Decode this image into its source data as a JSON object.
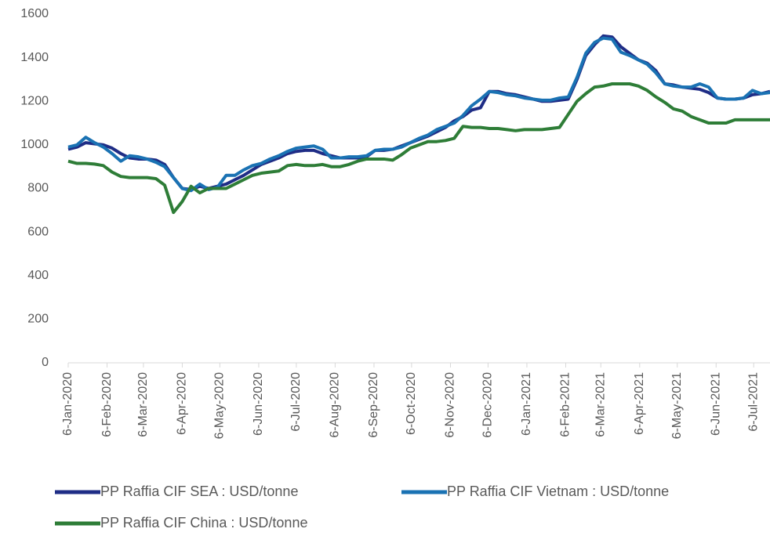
{
  "chart_data": {
    "type": "line",
    "x": [
      "2020-01-06",
      "2020-01-13",
      "2020-01-20",
      "2020-01-27",
      "2020-02-03",
      "2020-02-10",
      "2020-02-17",
      "2020-02-24",
      "2020-03-02",
      "2020-03-09",
      "2020-03-16",
      "2020-03-23",
      "2020-03-30",
      "2020-04-06",
      "2020-04-13",
      "2020-04-20",
      "2020-04-27",
      "2020-05-04",
      "2020-05-11",
      "2020-05-18",
      "2020-05-25",
      "2020-06-01",
      "2020-06-08",
      "2020-06-15",
      "2020-06-22",
      "2020-06-29",
      "2020-07-06",
      "2020-07-13",
      "2020-07-20",
      "2020-07-27",
      "2020-08-03",
      "2020-08-10",
      "2020-08-17",
      "2020-08-24",
      "2020-08-31",
      "2020-09-07",
      "2020-09-14",
      "2020-09-21",
      "2020-09-28",
      "2020-10-05",
      "2020-10-12",
      "2020-10-19",
      "2020-10-26",
      "2020-11-02",
      "2020-11-09",
      "2020-11-16",
      "2020-11-23",
      "2020-11-30",
      "2020-12-07",
      "2020-12-14",
      "2020-12-21",
      "2020-12-28",
      "2021-01-04",
      "2021-01-11",
      "2021-01-18",
      "2021-01-25",
      "2021-02-01",
      "2021-02-08",
      "2021-02-15",
      "2021-02-22",
      "2021-03-01",
      "2021-03-08",
      "2021-03-15",
      "2021-03-22",
      "2021-03-29",
      "2021-04-05",
      "2021-04-12",
      "2021-04-19",
      "2021-04-26",
      "2021-05-03",
      "2021-05-10",
      "2021-05-17",
      "2021-05-24",
      "2021-05-31",
      "2021-06-07",
      "2021-06-14",
      "2021-06-21",
      "2021-06-28",
      "2021-07-05",
      "2021-07-12",
      "2021-07-19"
    ],
    "series": [
      {
        "name": "PP Raffia CIF SEA : USD/tonne",
        "color": "#1f2d86",
        "values": [
          980,
          990,
          1010,
          1005,
          1000,
          985,
          960,
          940,
          935,
          935,
          930,
          910,
          850,
          800,
          795,
          810,
          800,
          810,
          820,
          840,
          860,
          885,
          910,
          925,
          940,
          960,
          970,
          975,
          975,
          960,
          950,
          940,
          940,
          940,
          945,
          975,
          975,
          980,
          995,
          1010,
          1025,
          1040,
          1060,
          1080,
          1110,
          1130,
          1160,
          1170,
          1245,
          1245,
          1235,
          1230,
          1220,
          1210,
          1200,
          1200,
          1205,
          1210,
          1300,
          1410,
          1460,
          1500,
          1495,
          1450,
          1420,
          1390,
          1375,
          1340,
          1280,
          1275,
          1265,
          1260,
          1255,
          1240,
          1215,
          1210,
          1210,
          1215,
          1230,
          1235,
          1245
        ]
      },
      {
        "name": "PP Raffia CIF Vietnam : USD/tonne",
        "color": "#1a72b3",
        "values": [
          990,
          1000,
          1035,
          1010,
          990,
          960,
          925,
          950,
          945,
          935,
          920,
          900,
          850,
          800,
          790,
          820,
          795,
          805,
          860,
          860,
          885,
          905,
          915,
          935,
          950,
          970,
          985,
          990,
          995,
          980,
          940,
          940,
          945,
          945,
          950,
          975,
          980,
          980,
          990,
          1010,
          1030,
          1045,
          1070,
          1085,
          1100,
          1135,
          1180,
          1210,
          1245,
          1240,
          1230,
          1225,
          1215,
          1210,
          1205,
          1205,
          1215,
          1220,
          1310,
          1420,
          1470,
          1490,
          1485,
          1425,
          1410,
          1390,
          1370,
          1330,
          1280,
          1270,
          1265,
          1265,
          1280,
          1265,
          1215,
          1210,
          1210,
          1215,
          1250,
          1235,
          1240
        ]
      },
      {
        "name": "PP Raffia CIF China : USD/tonne",
        "color": "#2e7d37",
        "values": [
          925,
          915,
          915,
          912,
          905,
          875,
          855,
          850,
          850,
          850,
          845,
          815,
          690,
          740,
          810,
          780,
          800,
          800,
          800,
          820,
          840,
          860,
          870,
          875,
          880,
          905,
          910,
          905,
          905,
          910,
          900,
          900,
          910,
          925,
          935,
          935,
          935,
          930,
          955,
          985,
          1000,
          1015,
          1015,
          1020,
          1030,
          1085,
          1080,
          1080,
          1075,
          1075,
          1070,
          1065,
          1070,
          1070,
          1070,
          1075,
          1080,
          1140,
          1200,
          1235,
          1265,
          1270,
          1280,
          1280,
          1280,
          1270,
          1250,
          1220,
          1195,
          1165,
          1155,
          1130,
          1115,
          1100,
          1100,
          1100,
          1115,
          1115,
          1115,
          1115,
          1115
        ]
      }
    ],
    "xlim": [
      "2020-01-06",
      "2021-07-19"
    ],
    "xticks": [
      {
        "value": "2020-01-06",
        "label": "6-Jan-2020"
      },
      {
        "value": "2020-02-06",
        "label": "6-Feb-2020"
      },
      {
        "value": "2020-03-06",
        "label": "6-Mar-2020"
      },
      {
        "value": "2020-04-06",
        "label": "6-Apr-2020"
      },
      {
        "value": "2020-05-06",
        "label": "6-May-2020"
      },
      {
        "value": "2020-06-06",
        "label": "6-Jun-2020"
      },
      {
        "value": "2020-07-06",
        "label": "6-Jul-2020"
      },
      {
        "value": "2020-08-06",
        "label": "6-Aug-2020"
      },
      {
        "value": "2020-09-06",
        "label": "6-Sep-2020"
      },
      {
        "value": "2020-10-06",
        "label": "6-Oct-2020"
      },
      {
        "value": "2020-11-06",
        "label": "6-Nov-2020"
      },
      {
        "value": "2020-12-06",
        "label": "6-Dec-2020"
      },
      {
        "value": "2021-01-06",
        "label": "6-Jan-2021"
      },
      {
        "value": "2021-02-06",
        "label": "6-Feb-2021"
      },
      {
        "value": "2021-03-06",
        "label": "6-Mar-2021"
      },
      {
        "value": "2021-04-06",
        "label": "6-Apr-2021"
      },
      {
        "value": "2021-05-06",
        "label": "6-May-2021"
      },
      {
        "value": "2021-06-06",
        "label": "6-Jun-2021"
      },
      {
        "value": "2021-07-06",
        "label": "6-Jul-2021"
      }
    ],
    "ylim": [
      0,
      1600
    ],
    "yticks": [
      0,
      200,
      400,
      600,
      800,
      1000,
      1200,
      1400,
      1600
    ],
    "grid": false
  }
}
